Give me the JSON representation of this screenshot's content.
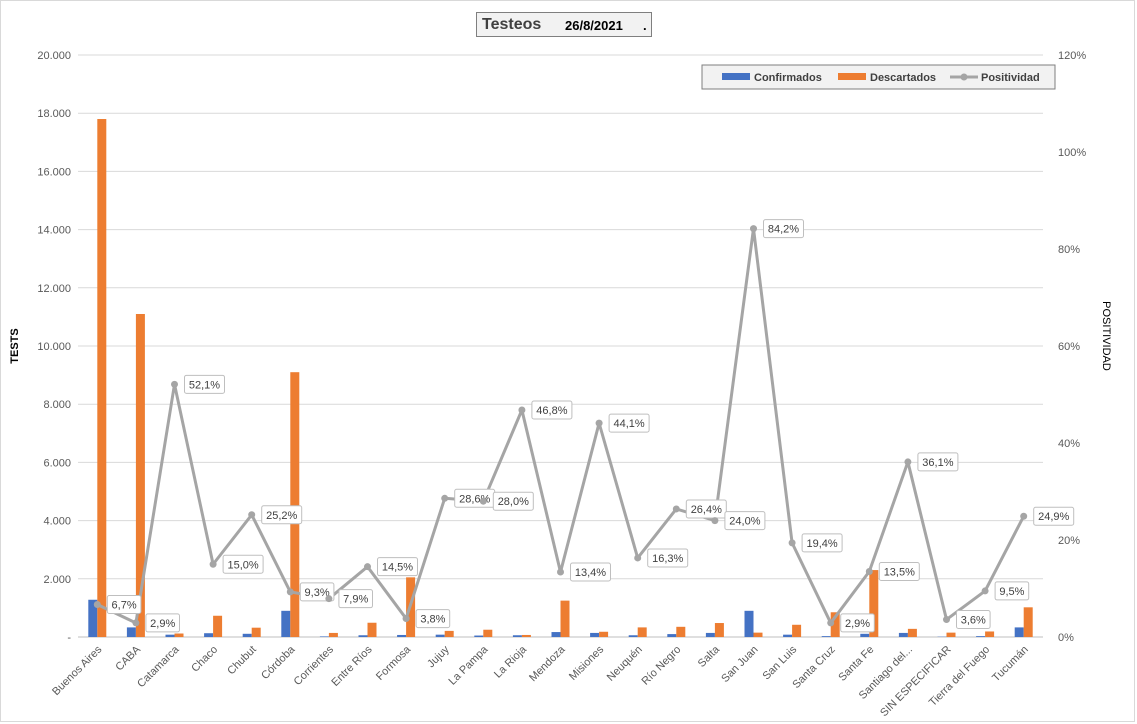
{
  "header": {
    "title": "Testeos",
    "date": "26/8/2021",
    "dot": "."
  },
  "chart_data": {
    "type": "bar",
    "title": "Testeos",
    "subtitle": "26/8/2021",
    "ylabel": "TESTS",
    "y2label": "POSITIVIDAD",
    "ylim": [
      0,
      20000
    ],
    "y2lim": [
      0,
      1.2
    ],
    "yticks": [
      "-",
      "2.000",
      "4.000",
      "6.000",
      "8.000",
      "10.000",
      "12.000",
      "14.000",
      "16.000",
      "18.000",
      "20.000"
    ],
    "y2ticks": [
      "0%",
      "20%",
      "40%",
      "60%",
      "80%",
      "100%",
      "120%"
    ],
    "grid": true,
    "legend_position": "top-right",
    "categories": [
      "Buenos Aires",
      "CABA",
      "Catamarca",
      "Chaco",
      "Chubut",
      "Córdoba",
      "Corrientes",
      "Entre Ríos",
      "Formosa",
      "Jujuy",
      "La Pampa",
      "La Rioja",
      "Mendoza",
      "Misiones",
      "Neuquén",
      "Río Negro",
      "Salta",
      "San Juan",
      "San Luis",
      "Santa Cruz",
      "Santa Fe",
      "Santiago del...",
      "SIN ESPECIFICAR",
      "Tierra del Fuego",
      "Tucumán"
    ],
    "series": [
      {
        "name": "Confirmados",
        "type": "bar",
        "color": "#4472c4",
        "values": [
          1280,
          330,
          80,
          130,
          110,
          900,
          20,
          60,
          70,
          80,
          50,
          60,
          170,
          140,
          60,
          100,
          140,
          900,
          80,
          30,
          110,
          140,
          10,
          30,
          330
        ]
      },
      {
        "name": "Descartados",
        "type": "bar",
        "color": "#ed7d31",
        "values": [
          17800,
          11100,
          120,
          730,
          320,
          9100,
          140,
          490,
          2050,
          210,
          250,
          70,
          1250,
          180,
          330,
          350,
          480,
          150,
          420,
          850,
          2300,
          280,
          150,
          190,
          1020
        ]
      },
      {
        "name": "Positividad",
        "type": "line",
        "axis": "right",
        "color": "#a5a5a5",
        "values": [
          0.067,
          0.029,
          0.521,
          0.15,
          0.252,
          0.093,
          0.079,
          0.145,
          0.038,
          0.286,
          0.28,
          0.468,
          0.134,
          0.441,
          0.163,
          0.264,
          0.24,
          0.842,
          0.194,
          0.029,
          0.135,
          0.361,
          0.036,
          0.095,
          0.249
        ],
        "labels": [
          "6,7%",
          "2,9%",
          "52,1%",
          "15,0%",
          "25,2%",
          "9,3%",
          "7,9%",
          "14,5%",
          "3,8%",
          "28,6%",
          "28,0%",
          "46,8%",
          "13,4%",
          "44,1%",
          "16,3%",
          "26,4%",
          "24,0%",
          "84,2%",
          "19,4%",
          "2,9%",
          "13,5%",
          "36,1%",
          "3,6%",
          "9,5%",
          "24,9%"
        ]
      }
    ]
  }
}
